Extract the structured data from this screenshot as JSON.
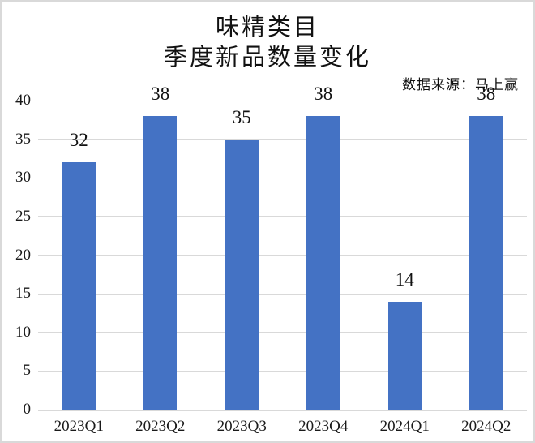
{
  "header": {
    "title_line1": "味精类目",
    "title_line2": "季度新品数量变化",
    "source": "数据来源：马上赢"
  },
  "chart_data": {
    "type": "bar",
    "title": "味精类目",
    "subtitle": "季度新品数量变化",
    "annotation": "数据来源：马上赢",
    "categories": [
      "2023Q1",
      "2023Q2",
      "2023Q3",
      "2023Q4",
      "2024Q1",
      "2024Q2"
    ],
    "values": [
      32,
      38,
      35,
      38,
      14,
      38
    ],
    "xlabel": "",
    "ylabel": "",
    "ylim": [
      0,
      40
    ],
    "yticks": [
      0,
      5,
      10,
      15,
      20,
      25,
      30,
      35,
      40
    ],
    "grid": true,
    "legend": "none",
    "data_labels": true,
    "colors": {
      "bar": "#4472C4",
      "gridline": "#D9D9D9",
      "text": "#111111"
    }
  }
}
